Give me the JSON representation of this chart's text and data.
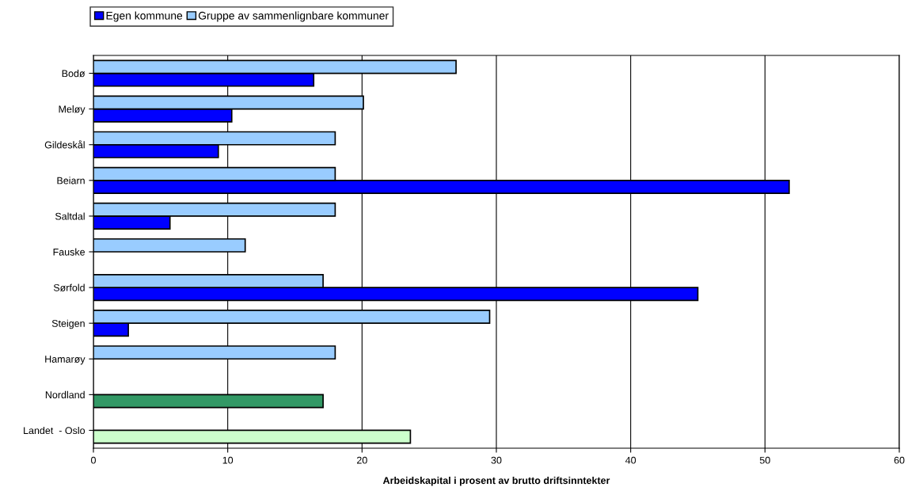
{
  "chart_data": {
    "type": "bar",
    "orientation": "horizontal",
    "xlabel": "Arbeidskapital i prosent av brutto driftsinntekter",
    "categories": [
      "Bodø",
      "Meløy",
      "Gildeskål",
      "Beiarn",
      "Saltdal",
      "Fauske",
      "Sørfold",
      "Steigen",
      "Hamarøy",
      "Nordland",
      "Landet  - Oslo"
    ],
    "series": [
      {
        "name": "Egen kommune",
        "color": "#0000ff",
        "colors": [
          "#0000ff",
          "#0000ff",
          "#0000ff",
          "#0000ff",
          "#0000ff",
          "#0000ff",
          "#0000ff",
          "#0000ff",
          "#0000ff",
          "#339966",
          "#ccffcc"
        ],
        "values": [
          16.4,
          10.3,
          9.3,
          51.8,
          5.7,
          null,
          45.0,
          2.6,
          null,
          17.1,
          23.6
        ]
      },
      {
        "name": "Gruppe av sammenlignbare kommuner",
        "color": "#99ccff",
        "values": [
          27.0,
          20.1,
          18.0,
          18.0,
          18.0,
          11.3,
          17.1,
          29.5,
          18.0,
          null,
          null
        ]
      }
    ],
    "xlim": [
      0,
      60
    ],
    "xticks": [
      0,
      10,
      20,
      30,
      40,
      50,
      60
    ],
    "grid": "x",
    "legend": "top left"
  }
}
